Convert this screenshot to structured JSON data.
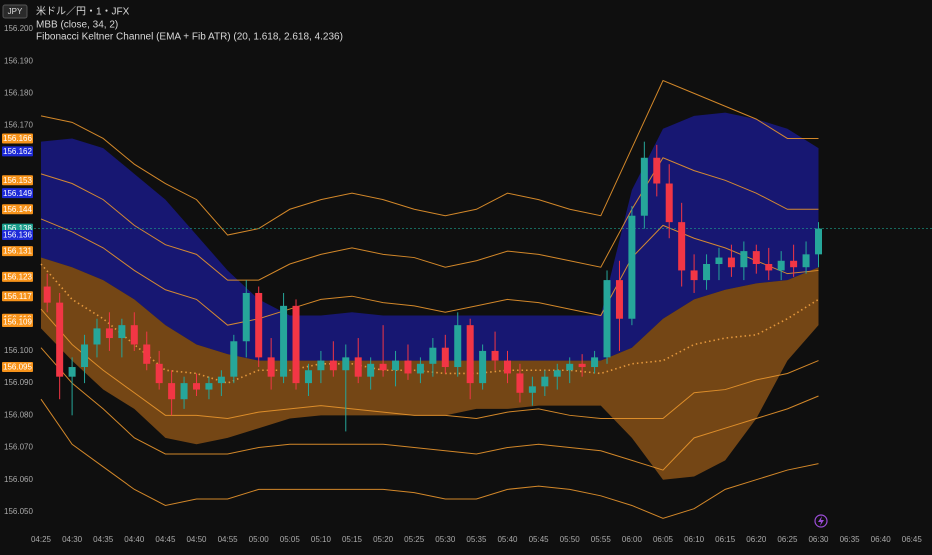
{
  "header": {
    "badge": "JPY",
    "symbol": "米ドル／円・1・JFX",
    "indicators": [
      "MBB (close, 34, 2)",
      "Fibonacci Keltner Channel (EMA + Fib ATR) (20, 1.618, 2.618, 4.236)"
    ]
  },
  "chart_data": {
    "type": "candlestick",
    "ylim": [
      156.045,
      156.209
    ],
    "yticks": [
      {
        "value": 156.2,
        "label": "156.200"
      },
      {
        "value": 156.19,
        "label": "156.190"
      },
      {
        "value": 156.18,
        "label": "156.180"
      },
      {
        "value": 156.17,
        "label": "156.170"
      },
      {
        "value": 156.1,
        "label": "156.100"
      },
      {
        "value": 156.09,
        "label": "156.090"
      },
      {
        "value": 156.08,
        "label": "156.080"
      },
      {
        "value": 156.07,
        "label": "156.070"
      },
      {
        "value": 156.06,
        "label": "156.060"
      },
      {
        "value": 156.05,
        "label": "156.050"
      }
    ],
    "xticks": [
      "04:25",
      "04:30",
      "04:35",
      "04:40",
      "04:45",
      "04:50",
      "04:55",
      "05:00",
      "05:05",
      "05:10",
      "05:15",
      "05:20",
      "05:25",
      "05:30",
      "05:35",
      "05:40",
      "05:45",
      "05:50",
      "05:55",
      "06:00",
      "06:05",
      "06:10",
      "06:15",
      "06:20",
      "06:25",
      "06:30",
      "06:35",
      "06:40",
      "06:45"
    ],
    "up_color": "#26a69a",
    "down_color": "#f23645",
    "x": [
      "04:25",
      "04:27",
      "04:29",
      "04:31",
      "04:33",
      "04:35",
      "04:37",
      "04:39",
      "04:41",
      "04:43",
      "04:45",
      "04:47",
      "04:49",
      "04:51",
      "04:53",
      "04:55",
      "04:57",
      "04:59",
      "05:01",
      "05:03",
      "05:05",
      "05:07",
      "05:09",
      "05:11",
      "05:13",
      "05:15",
      "05:17",
      "05:19",
      "05:21",
      "05:23",
      "05:25",
      "05:27",
      "05:29",
      "05:31",
      "05:33",
      "05:35",
      "05:37",
      "05:39",
      "05:41",
      "05:43",
      "05:45",
      "05:47",
      "05:49",
      "05:51",
      "05:53",
      "05:55",
      "05:57",
      "05:59",
      "06:01",
      "06:03",
      "06:05",
      "06:07",
      "06:09",
      "06:11",
      "06:13",
      "06:15",
      "06:17",
      "06:19",
      "06:21",
      "06:23",
      "06:25",
      "06:27",
      "06:29"
    ],
    "open": [
      156.12,
      156.115,
      156.092,
      156.095,
      156.102,
      156.107,
      156.104,
      156.108,
      156.102,
      156.096,
      156.09,
      156.085,
      156.09,
      156.088,
      156.09,
      156.092,
      156.103,
      156.118,
      156.098,
      156.092,
      156.114,
      156.09,
      156.094,
      156.097,
      156.094,
      156.098,
      156.092,
      156.096,
      156.094,
      156.097,
      156.093,
      156.096,
      156.101,
      156.095,
      156.108,
      156.09,
      156.1,
      156.097,
      156.093,
      156.087,
      156.089,
      156.092,
      156.094,
      156.096,
      156.095,
      156.098,
      156.122,
      156.11,
      156.142,
      156.16,
      156.152,
      156.14,
      156.125,
      156.122,
      156.127,
      156.129,
      156.126,
      156.131,
      156.127,
      156.125,
      156.128,
      156.126,
      156.13
    ],
    "high": [
      156.124,
      156.118,
      156.098,
      156.105,
      156.11,
      156.112,
      156.11,
      156.112,
      156.106,
      156.1,
      156.094,
      156.092,
      156.093,
      156.092,
      156.094,
      156.105,
      156.122,
      156.12,
      156.104,
      156.118,
      156.116,
      156.096,
      156.1,
      156.103,
      156.102,
      156.104,
      156.098,
      156.108,
      156.1,
      156.102,
      156.098,
      156.104,
      156.105,
      156.112,
      156.11,
      156.102,
      156.106,
      156.1,
      156.096,
      156.092,
      156.094,
      156.096,
      156.098,
      156.099,
      156.1,
      156.125,
      156.128,
      156.145,
      156.165,
      156.164,
      156.158,
      156.146,
      156.13,
      156.13,
      156.132,
      156.133,
      156.134,
      156.133,
      156.132,
      156.131,
      156.133,
      156.134,
      156.14
    ],
    "low": [
      156.112,
      156.085,
      156.08,
      156.09,
      156.098,
      156.1,
      156.098,
      156.1,
      156.094,
      156.088,
      156.08,
      156.082,
      156.086,
      156.085,
      156.086,
      156.09,
      156.098,
      156.095,
      156.088,
      156.09,
      156.088,
      156.086,
      156.09,
      156.092,
      156.075,
      156.09,
      156.088,
      156.092,
      156.089,
      156.091,
      156.09,
      156.092,
      156.093,
      156.092,
      156.085,
      156.088,
      156.094,
      156.09,
      156.084,
      156.083,
      156.086,
      156.088,
      156.09,
      156.092,
      156.093,
      156.096,
      156.1,
      156.108,
      156.138,
      156.148,
      156.135,
      156.12,
      156.118,
      156.119,
      156.122,
      156.123,
      156.122,
      156.124,
      156.122,
      156.122,
      156.123,
      156.124,
      156.126
    ],
    "close": [
      156.115,
      156.092,
      156.095,
      156.102,
      156.107,
      156.104,
      156.108,
      156.102,
      156.096,
      156.09,
      156.085,
      156.09,
      156.088,
      156.09,
      156.092,
      156.103,
      156.118,
      156.098,
      156.092,
      156.114,
      156.09,
      156.094,
      156.097,
      156.094,
      156.098,
      156.092,
      156.096,
      156.094,
      156.097,
      156.093,
      156.096,
      156.101,
      156.095,
      156.108,
      156.09,
      156.1,
      156.097,
      156.093,
      156.087,
      156.089,
      156.092,
      156.094,
      156.096,
      156.095,
      156.098,
      156.122,
      156.11,
      156.142,
      156.16,
      156.152,
      156.14,
      156.125,
      156.122,
      156.127,
      156.129,
      156.126,
      156.131,
      156.127,
      156.125,
      156.128,
      156.126,
      156.13,
      156.138
    ],
    "bands": {
      "x": [
        "04:25",
        "04:30",
        "04:35",
        "04:40",
        "04:45",
        "04:50",
        "04:55",
        "05:00",
        "05:05",
        "05:10",
        "05:15",
        "05:20",
        "05:25",
        "05:30",
        "05:35",
        "05:40",
        "05:45",
        "05:50",
        "05:55",
        "06:00",
        "06:05",
        "06:10",
        "06:15",
        "06:20",
        "06:25",
        "06:30"
      ],
      "mbb": {
        "upper_color": "#1c1cb4",
        "lower_color": "#c8741c",
        "upper": [
          156.165,
          156.166,
          156.163,
          156.155,
          156.147,
          156.136,
          156.125,
          156.116,
          156.111,
          156.111,
          156.112,
          156.111,
          156.111,
          156.111,
          156.111,
          156.111,
          156.111,
          156.111,
          156.111,
          156.15,
          156.169,
          156.173,
          156.174,
          156.172,
          156.169,
          156.163
        ],
        "basis": [
          156.129,
          156.126,
          156.122,
          156.116,
          156.108,
          156.102,
          156.099,
          156.097,
          156.097,
          156.097,
          156.097,
          156.097,
          156.097,
          156.097,
          156.097,
          156.097,
          156.097,
          156.097,
          156.097,
          156.101,
          156.11,
          156.116,
          156.119,
          156.121,
          156.122,
          156.126
        ],
        "lower": [
          156.107,
          156.097,
          156.088,
          156.082,
          156.073,
          156.071,
          156.073,
          156.076,
          156.079,
          156.08,
          156.08,
          156.08,
          156.08,
          156.08,
          156.082,
          156.082,
          156.083,
          156.083,
          156.083,
          156.073,
          156.06,
          156.061,
          156.066,
          156.079,
          156.097,
          156.108
        ]
      },
      "lines": [
        {
          "color": "#e8952c",
          "style": "solid",
          "values": [
            156.173,
            156.171,
            156.166,
            156.158,
            156.152,
            156.147,
            156.136,
            156.138,
            156.144,
            156.147,
            156.149,
            156.147,
            156.144,
            156.142,
            156.144,
            156.149,
            156.147,
            156.144,
            156.142,
            156.163,
            156.184,
            156.18,
            156.176,
            156.172,
            156.166,
            156.166
          ]
        },
        {
          "color": "#e8952c",
          "style": "solid",
          "values": [
            156.155,
            156.152,
            156.147,
            156.139,
            156.133,
            156.13,
            156.122,
            156.122,
            156.127,
            156.13,
            156.132,
            156.13,
            156.129,
            156.126,
            156.128,
            156.131,
            156.13,
            156.128,
            156.126,
            156.144,
            156.16,
            156.156,
            156.153,
            156.149,
            156.144,
            156.144
          ]
        },
        {
          "color": "#e8952c",
          "style": "solid",
          "values": [
            156.141,
            156.137,
            156.132,
            156.125,
            156.119,
            156.116,
            156.108,
            156.11,
            156.113,
            156.116,
            156.117,
            156.115,
            156.114,
            156.112,
            156.114,
            156.116,
            156.115,
            156.113,
            156.111,
            156.129,
            156.139,
            156.135,
            156.132,
            156.128,
            156.124,
            156.125
          ]
        },
        {
          "color": "#f0a040",
          "style": "dotted",
          "values": [
            156.127,
            156.116,
            156.11,
            156.102,
            156.094,
            156.093,
            156.09,
            156.094,
            156.094,
            156.096,
            156.096,
            156.094,
            156.094,
            156.093,
            156.093,
            156.094,
            156.094,
            156.094,
            156.093,
            156.096,
            156.097,
            156.102,
            156.104,
            156.105,
            156.11,
            156.116
          ]
        },
        {
          "color": "#e8952c",
          "style": "solid",
          "values": [
            156.113,
            156.102,
            156.094,
            156.087,
            156.08,
            156.08,
            156.079,
            156.081,
            156.082,
            156.083,
            156.082,
            156.081,
            156.08,
            156.08,
            156.079,
            156.081,
            156.082,
            156.08,
            156.079,
            156.079,
            156.079,
            156.087,
            156.088,
            156.091,
            156.093,
            156.097
          ]
        },
        {
          "color": "#e8952c",
          "style": "solid",
          "values": [
            156.101,
            156.09,
            156.082,
            156.073,
            156.068,
            156.068,
            156.068,
            156.07,
            156.071,
            156.071,
            156.071,
            156.071,
            156.07,
            156.069,
            156.068,
            156.07,
            156.071,
            156.07,
            156.069,
            156.066,
            156.063,
            156.073,
            156.076,
            156.079,
            156.082,
            156.086
          ]
        },
        {
          "color": "#e8952c",
          "style": "solid",
          "values": [
            156.085,
            156.071,
            156.064,
            156.057,
            156.052,
            156.054,
            156.054,
            156.057,
            156.057,
            156.057,
            156.057,
            156.057,
            156.056,
            156.054,
            156.054,
            156.057,
            156.058,
            156.057,
            156.055,
            156.052,
            156.048,
            156.051,
            156.057,
            156.06,
            156.063,
            156.065
          ]
        }
      ]
    },
    "price_tags": [
      {
        "value": 156.166,
        "color": "#f7931a"
      },
      {
        "value": 156.162,
        "color": "#1e2bd8"
      },
      {
        "value": 156.153,
        "color": "#f7931a"
      },
      {
        "value": 156.149,
        "color": "#1e2bd8"
      },
      {
        "value": 156.144,
        "color": "#f7931a"
      },
      {
        "value": 156.138,
        "color": "#1c9e8c"
      },
      {
        "value": 156.136,
        "color": "#1e2bd8"
      },
      {
        "value": 156.131,
        "color": "#f7931a"
      },
      {
        "value": 156.123,
        "color": "#f7931a"
      },
      {
        "value": 156.117,
        "color": "#f7931a"
      },
      {
        "value": {
          "value": 156.11,
          "label": "156.110"
        },
        "color": "#f7931a"
      },
      {
        "value": 156.109,
        "color": "#f7931a"
      },
      {
        "value": 156.095,
        "color": "#f7931a"
      }
    ],
    "current_price_tag": 5
  }
}
